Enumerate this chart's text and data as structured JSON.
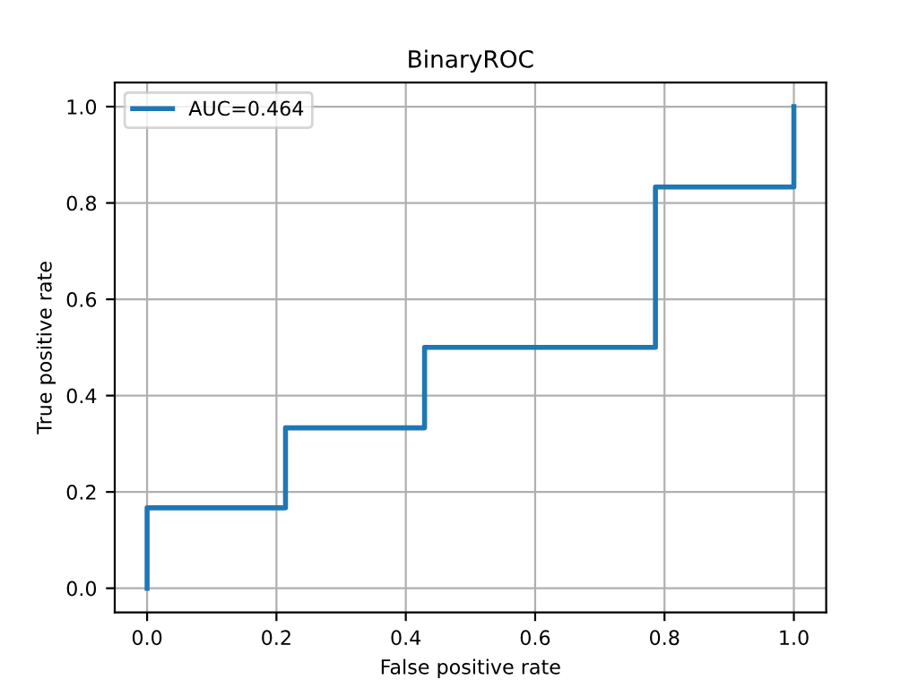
{
  "chart_data": {
    "type": "line",
    "title": "BinaryROC",
    "xlabel": "False positive rate",
    "ylabel": "True positive rate",
    "series": [
      {
        "name": "AUC=0.464",
        "color": "#1f77b4",
        "x": [
          0,
          0,
          0.214,
          0.214,
          0.429,
          0.429,
          0.786,
          0.786,
          1,
          1
        ],
        "values": [
          0,
          0.167,
          0.167,
          0.333,
          0.333,
          0.5,
          0.5,
          0.833,
          0.833,
          1
        ]
      }
    ],
    "xlim": [
      -0.05,
      1.05
    ],
    "ylim": [
      -0.05,
      1.05
    ],
    "xticks": [
      {
        "value": 0,
        "label": "0.0"
      },
      {
        "value": 0.2,
        "label": "0.2"
      },
      {
        "value": 0.4,
        "label": "0.4"
      },
      {
        "value": 0.6,
        "label": "0.6"
      },
      {
        "value": 0.8,
        "label": "0.8"
      },
      {
        "value": 1,
        "label": "1.0"
      }
    ],
    "yticks": [
      {
        "value": 0,
        "label": "0.0"
      },
      {
        "value": 0.2,
        "label": "0.2"
      },
      {
        "value": 0.4,
        "label": "0.4"
      },
      {
        "value": 0.6,
        "label": "0.6"
      },
      {
        "value": 0.8,
        "label": "0.8"
      },
      {
        "value": 1,
        "label": "1.0"
      }
    ],
    "grid": true,
    "legend": "top left",
    "marker": "none",
    "line_style": "solid"
  }
}
